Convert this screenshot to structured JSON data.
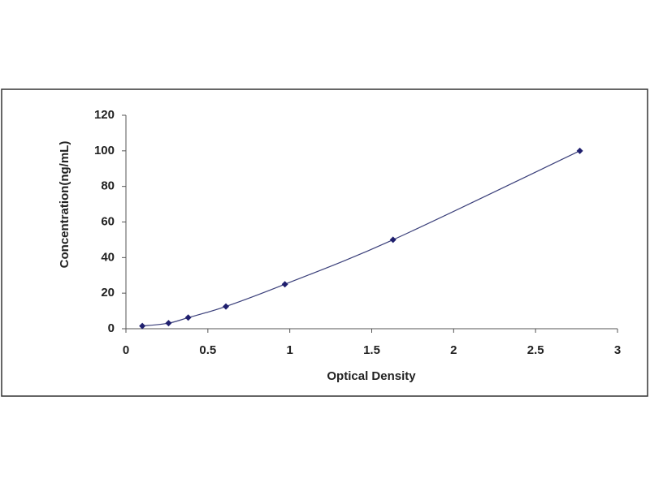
{
  "chart_data": {
    "type": "scatter",
    "line": true,
    "color": "#1f1f6e",
    "x_label": "Optical Density",
    "y_label": "Concentration(ng/mL)",
    "x": [
      0.1,
      0.26,
      0.38,
      0.61,
      0.97,
      1.63,
      2.77
    ],
    "values": [
      1.56,
      3.12,
      6.25,
      12.5,
      25,
      50,
      100
    ],
    "xlim": [
      0,
      3
    ],
    "xticks": [
      0,
      0.5,
      1,
      1.5,
      2,
      2.5,
      3
    ],
    "ylim": [
      0,
      120
    ],
    "yticks": [
      0,
      20,
      40,
      60,
      80,
      100,
      120
    ]
  }
}
